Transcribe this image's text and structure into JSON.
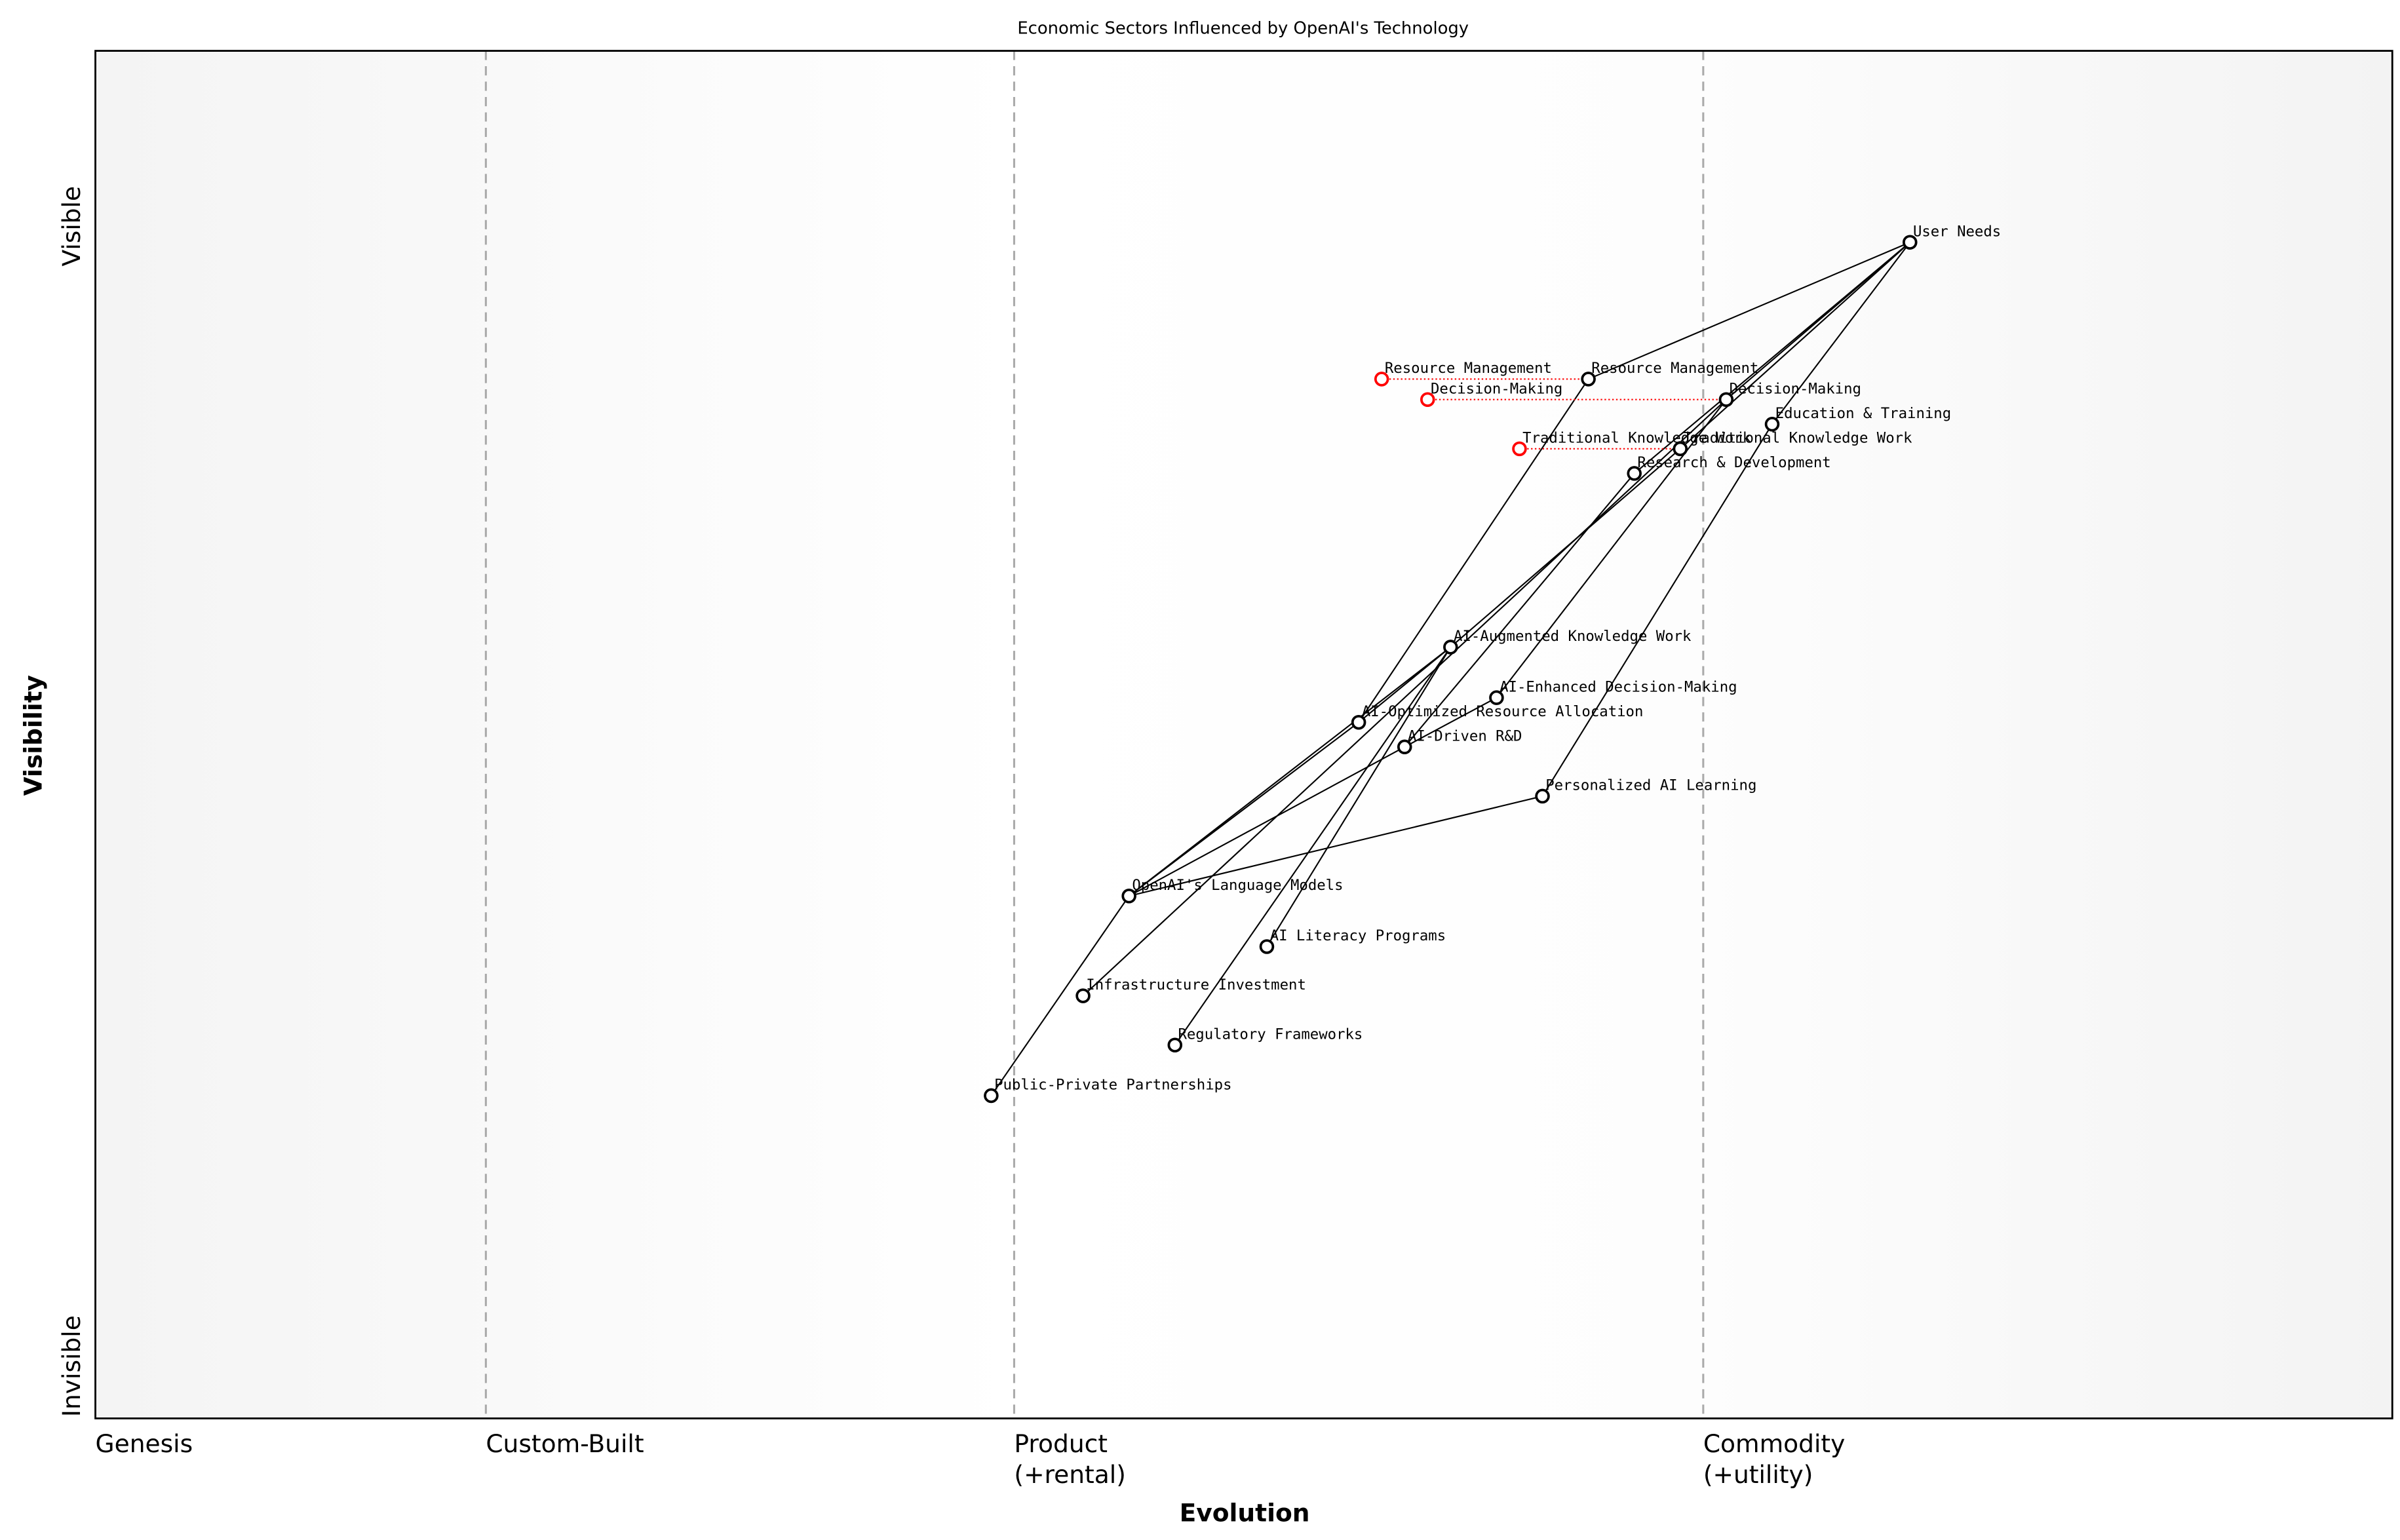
{
  "title": "Economic Sectors Influenced by OpenAI's Technology",
  "axes": {
    "x_title": "Evolution",
    "y_title": "Visibility",
    "y_top": "Visible",
    "y_bottom": "Invisible",
    "stages": [
      {
        "line1": "Genesis",
        "line2": "",
        "at": 0.0
      },
      {
        "line1": "Custom-Built",
        "line2": "",
        "at": 0.17
      },
      {
        "line1": "Product",
        "line2": "(+rental)",
        "at": 0.4
      },
      {
        "line1": "Commodity",
        "line2": "(+utility)",
        "at": 0.7
      }
    ]
  },
  "colors": {
    "node": "#000000",
    "evolved_from": "#ff0000",
    "stage_divider": "#aaaaaa"
  },
  "components": [
    {
      "id": "user_needs",
      "label": "User Needs",
      "evolution": 0.79,
      "visibility": 0.86
    },
    {
      "id": "resource_mgmt",
      "label": "Resource Management",
      "evolution": 0.65,
      "visibility": 0.76
    },
    {
      "id": "decision_making",
      "label": "Decision-Making",
      "evolution": 0.71,
      "visibility": 0.745
    },
    {
      "id": "education",
      "label": "Education & Training",
      "evolution": 0.73,
      "visibility": 0.727
    },
    {
      "id": "traditional_kw",
      "label": "Traditional Knowledge Work",
      "evolution": 0.69,
      "visibility": 0.709
    },
    {
      "id": "rnd",
      "label": "Research & Development",
      "evolution": 0.67,
      "visibility": 0.691
    },
    {
      "id": "ai_augmented",
      "label": "AI-Augmented Knowledge Work",
      "evolution": 0.59,
      "visibility": 0.564
    },
    {
      "id": "ai_enhanced",
      "label": "AI-Enhanced Decision-Making",
      "evolution": 0.61,
      "visibility": 0.527
    },
    {
      "id": "ai_optimized",
      "label": "AI-Optimized Resource Allocation",
      "evolution": 0.55,
      "visibility": 0.509
    },
    {
      "id": "ai_driven_rnd",
      "label": "AI-Driven R&D",
      "evolution": 0.57,
      "visibility": 0.491
    },
    {
      "id": "personalized",
      "label": "Personalized AI Learning",
      "evolution": 0.63,
      "visibility": 0.455
    },
    {
      "id": "openai_lm",
      "label": "OpenAI's Language Models",
      "evolution": 0.45,
      "visibility": 0.382
    },
    {
      "id": "ai_literacy",
      "label": "AI Literacy Programs",
      "evolution": 0.51,
      "visibility": 0.345
    },
    {
      "id": "infrastructure",
      "label": "Infrastructure Investment",
      "evolution": 0.43,
      "visibility": 0.309
    },
    {
      "id": "regulatory",
      "label": "Regulatory Frameworks",
      "evolution": 0.47,
      "visibility": 0.273
    },
    {
      "id": "ppp",
      "label": "Public-Private Partnerships",
      "evolution": 0.39,
      "visibility": 0.236
    }
  ],
  "evolved_from": [
    {
      "label": "Resource Management",
      "evolution": 0.56,
      "to": "resource_mgmt"
    },
    {
      "label": "Decision-Making",
      "evolution": 0.58,
      "to": "decision_making"
    },
    {
      "label": "Traditional Knowledge Work",
      "evolution": 0.62,
      "to": "traditional_kw"
    }
  ],
  "links": [
    [
      "user_needs",
      "resource_mgmt"
    ],
    [
      "user_needs",
      "decision_making"
    ],
    [
      "user_needs",
      "traditional_kw"
    ],
    [
      "user_needs",
      "rnd"
    ],
    [
      "user_needs",
      "education"
    ],
    [
      "resource_mgmt",
      "ai_optimized"
    ],
    [
      "decision_making",
      "ai_enhanced"
    ],
    [
      "decision_making",
      "infrastructure"
    ],
    [
      "traditional_kw",
      "ai_augmented"
    ],
    [
      "rnd",
      "ai_driven_rnd"
    ],
    [
      "education",
      "personalized"
    ],
    [
      "ai_augmented",
      "openai_lm"
    ],
    [
      "ai_augmented",
      "ai_optimized"
    ],
    [
      "ai_augmented",
      "ai_literacy"
    ],
    [
      "ai_augmented",
      "regulatory"
    ],
    [
      "ai_optimized",
      "openai_lm"
    ],
    [
      "ai_driven_rnd",
      "openai_lm"
    ],
    [
      "ai_driven_rnd",
      "ai_enhanced"
    ],
    [
      "personalized",
      "openai_lm"
    ],
    [
      "openai_lm",
      "ppp"
    ]
  ]
}
